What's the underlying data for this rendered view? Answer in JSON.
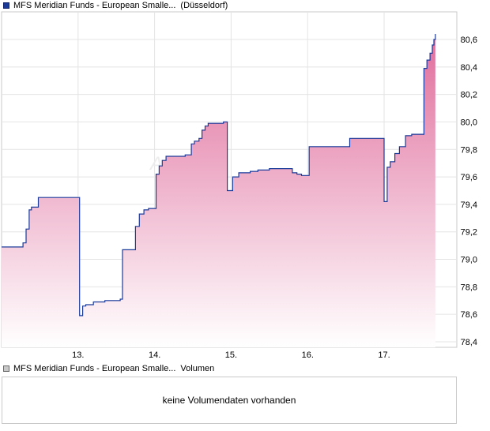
{
  "legend_price": {
    "series": "MFS Meridian Funds - European Smalle...",
    "exchange": "(Düsseldorf)",
    "color": "#1a3a9a"
  },
  "legend_volume": {
    "series": "MFS Meridian Funds - European Smalle...",
    "label": "Volumen",
    "color": "#c8c8c8"
  },
  "volume_message": "keine Volumendaten vorhanden",
  "watermark": "AR",
  "chart_data": {
    "type": "area",
    "title": "",
    "xlabel": "",
    "ylabel": "",
    "x_ticks": [
      "13.",
      "14.",
      "15.",
      "16.",
      "17."
    ],
    "y_ticks": [
      "78,4",
      "78,6",
      "78,8",
      "79,0",
      "79,2",
      "79,4",
      "79,6",
      "79,8",
      "80,0",
      "80,2",
      "80,4",
      "80,6"
    ],
    "ylim": [
      78.4,
      80.6
    ],
    "xlim": [
      12.0,
      17.95
    ],
    "grid": true,
    "line_color": "#1a3a9a",
    "fill_gradient": [
      "#e06d9c",
      "#ffffff"
    ],
    "series": [
      {
        "x": [
          12.0,
          12.25,
          12.28,
          12.32,
          12.36,
          12.39,
          12.48,
          12.52,
          12.56,
          12.62,
          12.68,
          12.78,
          12.9,
          12.98,
          13.02,
          13.06,
          13.1,
          13.2,
          13.35,
          13.55,
          13.58,
          13.7,
          13.75,
          13.8,
          13.86,
          13.92,
          14.02,
          14.06,
          14.1,
          14.15,
          14.25,
          14.4,
          14.48,
          14.52,
          14.58,
          14.62,
          14.66,
          14.7,
          14.9,
          14.95,
          15.02,
          15.1,
          15.25,
          15.35,
          15.5,
          15.8,
          15.86,
          15.92,
          16.02,
          16.12,
          16.5,
          16.55,
          16.8,
          16.95,
          17.0,
          17.04,
          17.08,
          17.14,
          17.2,
          17.28,
          17.36,
          17.48,
          17.52,
          17.56,
          17.6,
          17.63,
          17.65,
          17.67
        ],
        "y": [
          79.09,
          79.09,
          79.12,
          79.22,
          79.36,
          79.38,
          79.45,
          79.45,
          79.45,
          79.45,
          79.45,
          79.45,
          79.45,
          79.45,
          78.59,
          78.66,
          78.67,
          78.69,
          78.7,
          78.71,
          79.07,
          79.07,
          79.24,
          79.33,
          79.36,
          79.37,
          79.62,
          79.68,
          79.72,
          79.75,
          79.75,
          79.76,
          79.84,
          79.86,
          79.88,
          79.94,
          79.97,
          79.99,
          80.0,
          79.5,
          79.6,
          79.63,
          79.64,
          79.65,
          79.66,
          79.63,
          79.62,
          79.61,
          79.82,
          79.82,
          79.82,
          79.88,
          79.88,
          79.88,
          79.42,
          79.67,
          79.71,
          79.77,
          79.82,
          79.9,
          79.91,
          79.91,
          80.39,
          80.45,
          80.5,
          80.56,
          80.6,
          80.64
        ]
      }
    ]
  }
}
